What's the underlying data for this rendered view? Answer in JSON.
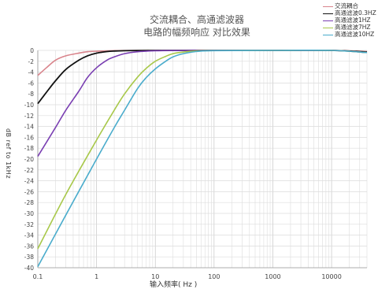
{
  "chart_data": {
    "type": "line",
    "title_lines": [
      "交流耦合、高通滤波器",
      "电路的幅频响应 对比效果"
    ],
    "xlabel": "输入频率( Hz )",
    "ylabel": "dB ref to 1kHz",
    "x_scale": "log",
    "xlim": [
      0.1,
      40000
    ],
    "ylim": [
      -40,
      0
    ],
    "x_ticks": [
      0.1,
      1,
      10,
      100,
      1000,
      10000
    ],
    "x_tick_labels": [
      "0.1",
      "1",
      "10",
      "100",
      "1000",
      "10000"
    ],
    "y_ticks": [
      0,
      -2,
      -4,
      -6,
      -8,
      -10,
      -12,
      -14,
      -16,
      -18,
      -20,
      -22,
      -24,
      -26,
      -28,
      -30,
      -32,
      -34,
      -36,
      -38,
      -40
    ],
    "grid": true,
    "legend_position": "top-right",
    "series": [
      {
        "name": "交流耦合",
        "color": "#d9848c",
        "x": [
          0.1,
          0.14,
          0.2,
          0.3,
          0.5,
          0.7,
          1,
          2,
          3,
          10,
          100,
          1000,
          10000,
          40000
        ],
        "y": [
          -4.6,
          -3.2,
          -1.8,
          -1.0,
          -0.5,
          -0.25,
          -0.15,
          -0.05,
          -0.02,
          0,
          0,
          0,
          0,
          -0.2
        ]
      },
      {
        "name": "高通滤波0.3HZ",
        "color": "#111111",
        "x": [
          0.1,
          0.15,
          0.2,
          0.3,
          0.5,
          0.7,
          1,
          1.5,
          2,
          3,
          5,
          10,
          100,
          1000,
          10000,
          40000
        ],
        "y": [
          -9.8,
          -7.3,
          -5.6,
          -3.5,
          -1.8,
          -1.0,
          -0.5,
          -0.22,
          -0.12,
          -0.05,
          -0.02,
          0,
          0,
          0,
          0,
          -0.3
        ]
      },
      {
        "name": "高通滤波1HZ",
        "color": "#7a3fb2",
        "x": [
          0.1,
          0.2,
          0.3,
          0.5,
          0.7,
          1,
          1.5,
          2,
          3,
          5,
          10,
          20,
          100,
          1000,
          10000,
          40000
        ],
        "y": [
          -19.5,
          -14.2,
          -11.0,
          -7.5,
          -5.0,
          -3.2,
          -1.8,
          -1.2,
          -0.6,
          -0.25,
          -0.07,
          -0.02,
          0,
          0,
          0,
          -0.4
        ]
      },
      {
        "name": "高通滤波7HZ",
        "color": "#a8c84a",
        "x": [
          0.1,
          0.3,
          1,
          2,
          3,
          5,
          7,
          10,
          15,
          20,
          30,
          50,
          100,
          1000,
          10000,
          40000
        ],
        "y": [
          -36.5,
          -26.5,
          -16.5,
          -11.0,
          -8.0,
          -4.9,
          -3.3,
          -2.0,
          -1.1,
          -0.6,
          -0.3,
          -0.1,
          -0.03,
          0,
          0,
          -0.4
        ]
      },
      {
        "name": "高通滤波10HZ",
        "color": "#4aaccc",
        "x": [
          0.1,
          0.3,
          1,
          2,
          3,
          5,
          7,
          10,
          15,
          20,
          30,
          50,
          100,
          1000,
          10000,
          40000
        ],
        "y": [
          -39.8,
          -30.3,
          -20.0,
          -14.2,
          -11.0,
          -7.0,
          -5.0,
          -3.4,
          -2.0,
          -1.2,
          -0.6,
          -0.2,
          -0.05,
          0,
          0,
          -0.4
        ]
      }
    ]
  }
}
